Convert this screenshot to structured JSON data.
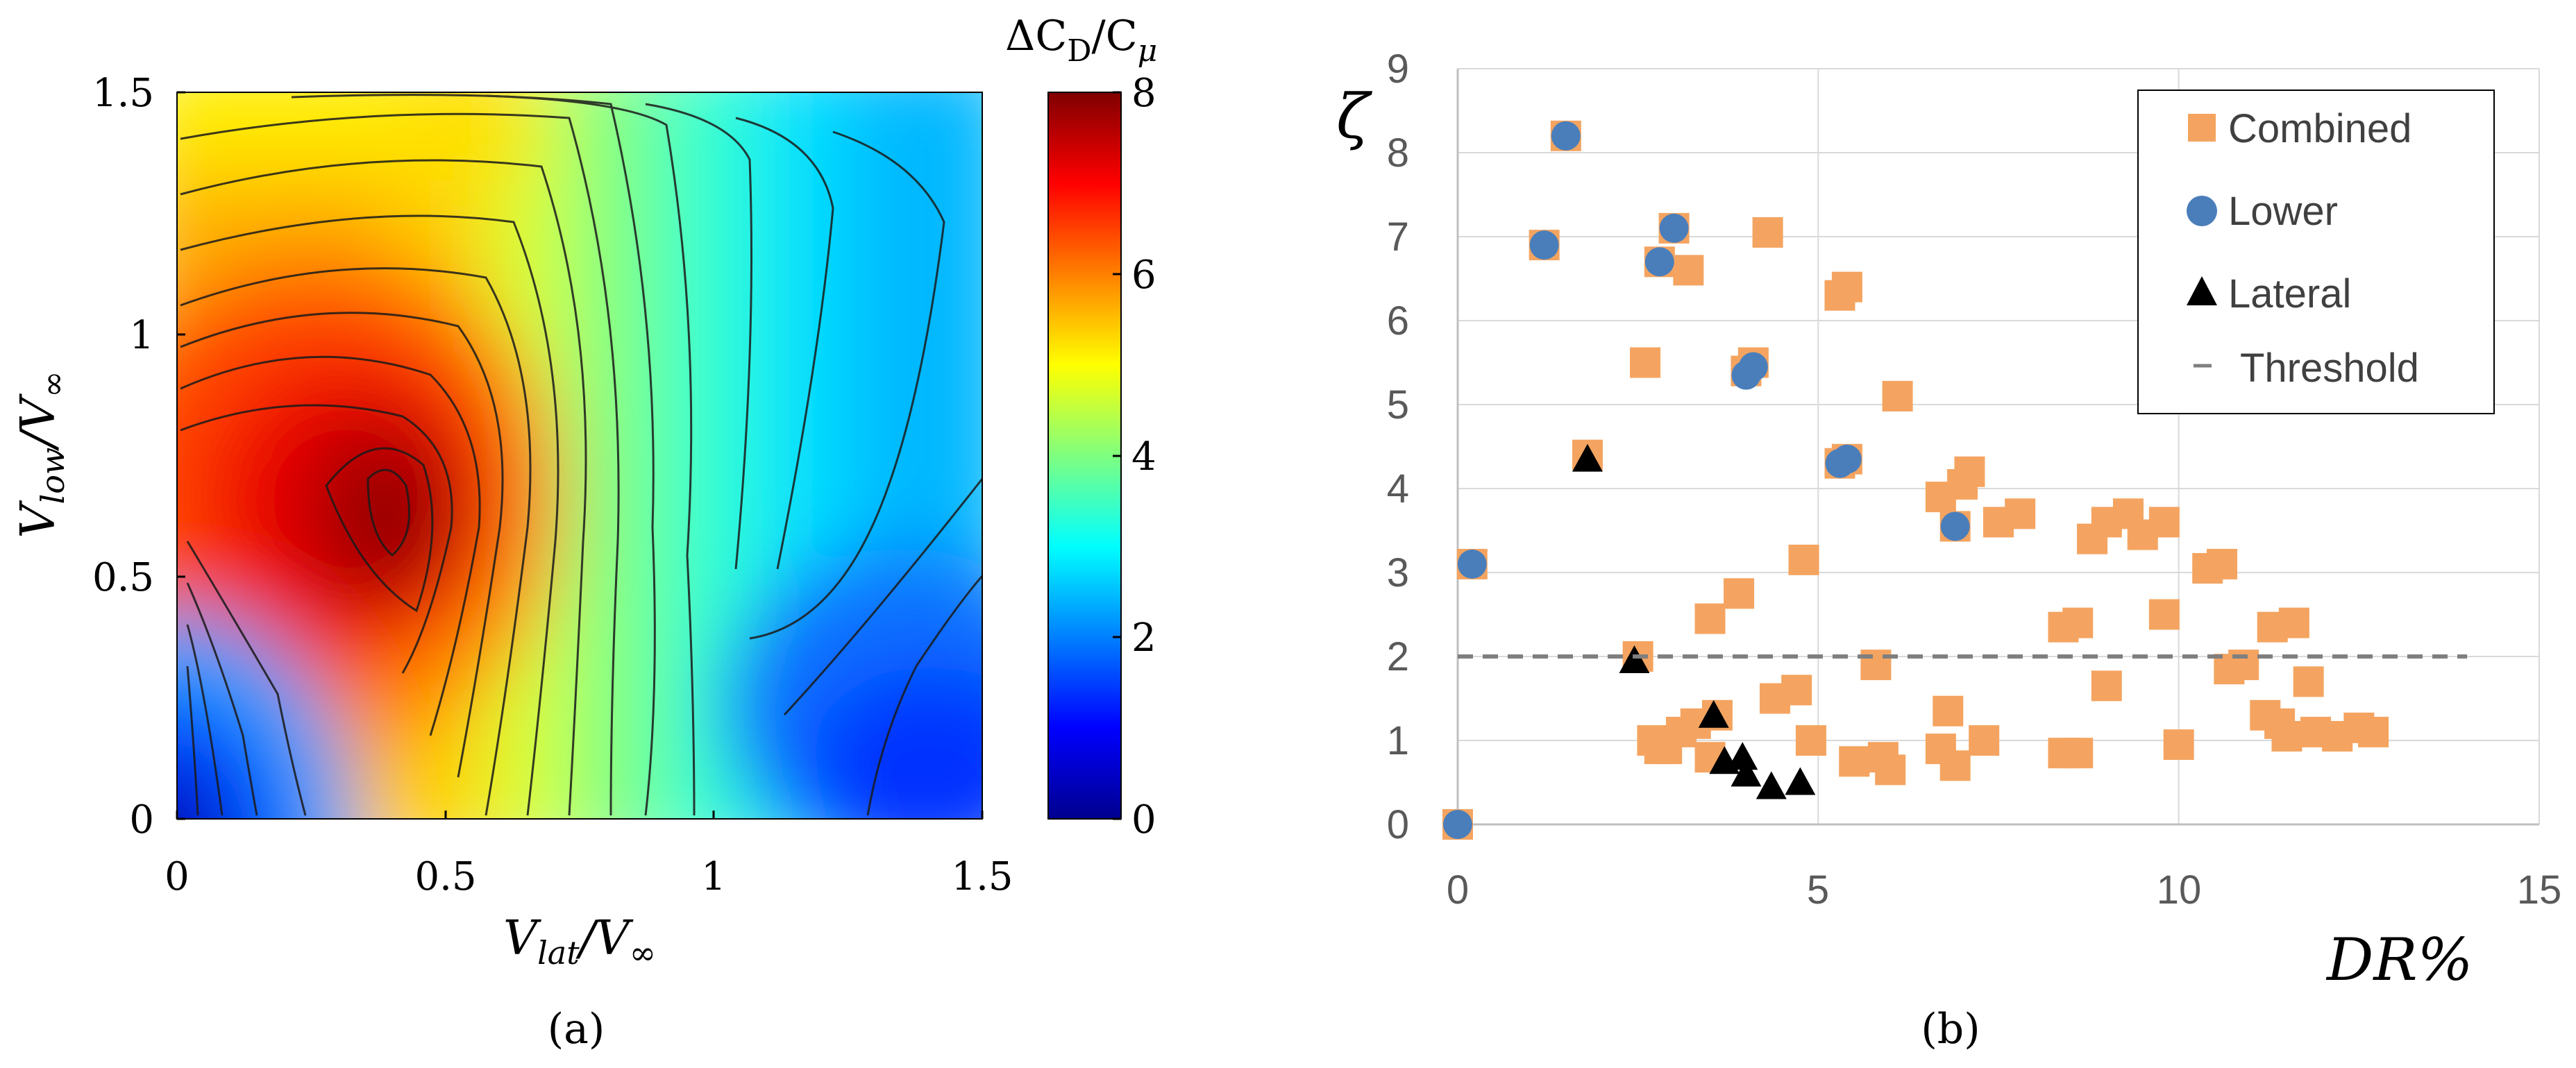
{
  "chart_data": [
    {
      "panel_label": "(a)",
      "type": "heatmap",
      "subtype": "filled-contour",
      "xlabel_main": "V",
      "xlabel_sub": "lat",
      "xlabel_den_main": "V",
      "xlabel_den_sub": "∞",
      "ylabel_main": "V",
      "ylabel_sub": "low",
      "ylabel_den_main": "V",
      "ylabel_den_sub": "∞",
      "xlim": [
        0,
        1.5
      ],
      "ylim": [
        0,
        1.5
      ],
      "xticks": [
        "0",
        "0.5",
        "1",
        "1.5"
      ],
      "yticks": [
        "0",
        "0.5",
        "1",
        "1.5"
      ],
      "colorbar_title": "ΔC",
      "colorbar_title_sub": "D",
      "colorbar_title_den": "/C",
      "colorbar_title_den_sub": "μ",
      "colorbar_range": [
        0,
        8
      ],
      "colorbar_ticks": [
        "0",
        "2",
        "4",
        "6",
        "8"
      ],
      "colormap": "jet",
      "contour_levels": 20,
      "peak": {
        "x": 0.4,
        "y": 0.6,
        "value": 8
      },
      "colors": {
        "low": "#00008f",
        "high": "#800000",
        "line": "#1a1a1a"
      }
    },
    {
      "panel_label": "(b)",
      "type": "scatter",
      "ylabel": "ζ",
      "xlabel": "DR%",
      "xlim": [
        0,
        15
      ],
      "ylim": [
        0,
        9
      ],
      "xticks": [
        "0",
        "5",
        "10",
        "15"
      ],
      "yticks": [
        "0",
        "1",
        "2",
        "3",
        "4",
        "5",
        "6",
        "7",
        "8",
        "9"
      ],
      "grid": true,
      "legend_position": "top-right",
      "series": [
        {
          "name": "Combined",
          "marker": "square",
          "color": "#f4a460",
          "points": [
            [
              0,
              0
            ],
            [
              0.2,
              3.1
            ],
            [
              1.2,
              6.9
            ],
            [
              1.5,
              8.2
            ],
            [
              1.8,
              4.4
            ],
            [
              2.5,
              2.0
            ],
            [
              2.6,
              5.5
            ],
            [
              2.7,
              1.0
            ],
            [
              2.8,
              6.7
            ],
            [
              2.8,
              0.9
            ],
            [
              2.9,
              0.9
            ],
            [
              3.0,
              7.1
            ],
            [
              3.1,
              1.1
            ],
            [
              3.2,
              6.6
            ],
            [
              3.3,
              1.2
            ],
            [
              3.5,
              2.45
            ],
            [
              3.5,
              0.8
            ],
            [
              3.6,
              1.3
            ],
            [
              3.9,
              2.75
            ],
            [
              4.0,
              5.4
            ],
            [
              4.1,
              5.5
            ],
            [
              4.3,
              7.05
            ],
            [
              4.4,
              1.5
            ],
            [
              4.7,
              1.6
            ],
            [
              4.8,
              3.15
            ],
            [
              4.9,
              1.0
            ],
            [
              5.3,
              6.3
            ],
            [
              5.3,
              4.3
            ],
            [
              5.4,
              6.4
            ],
            [
              5.4,
              4.35
            ],
            [
              5.5,
              0.75
            ],
            [
              5.8,
              1.9
            ],
            [
              5.9,
              0.8
            ],
            [
              6.0,
              0.65
            ],
            [
              6.1,
              5.1
            ],
            [
              6.7,
              0.9
            ],
            [
              6.7,
              3.9
            ],
            [
              6.8,
              1.35
            ],
            [
              6.9,
              0.7
            ],
            [
              6.9,
              3.55
            ],
            [
              7.0,
              4.05
            ],
            [
              7.1,
              4.2
            ],
            [
              7.3,
              1.0
            ],
            [
              7.5,
              3.6
            ],
            [
              7.8,
              3.7
            ],
            [
              8.4,
              2.35
            ],
            [
              8.4,
              0.85
            ],
            [
              8.6,
              2.4
            ],
            [
              8.6,
              0.85
            ],
            [
              8.8,
              3.4
            ],
            [
              9.0,
              3.6
            ],
            [
              9.0,
              1.65
            ],
            [
              9.3,
              3.7
            ],
            [
              9.5,
              3.45
            ],
            [
              9.8,
              3.6
            ],
            [
              9.8,
              2.5
            ],
            [
              10.0,
              0.95
            ],
            [
              10.4,
              3.05
            ],
            [
              10.6,
              3.1
            ],
            [
              10.7,
              1.85
            ],
            [
              10.9,
              1.9
            ],
            [
              11.2,
              1.3
            ],
            [
              11.3,
              2.35
            ],
            [
              11.4,
              1.2
            ],
            [
              11.6,
              2.4
            ],
            [
              11.5,
              1.05
            ],
            [
              11.8,
              1.7
            ],
            [
              11.9,
              1.1
            ],
            [
              12.2,
              1.05
            ],
            [
              12.5,
              1.15
            ],
            [
              12.7,
              1.1
            ]
          ]
        },
        {
          "name": "Lower",
          "marker": "circle",
          "color": "#4a7ebb",
          "points": [
            [
              0,
              0
            ],
            [
              0.2,
              3.1
            ],
            [
              1.2,
              6.9
            ],
            [
              1.5,
              8.2
            ],
            [
              2.8,
              6.7
            ],
            [
              3.0,
              7.1
            ],
            [
              4.0,
              5.35
            ],
            [
              4.1,
              5.45
            ],
            [
              5.3,
              4.3
            ],
            [
              5.4,
              4.35
            ],
            [
              6.9,
              3.55
            ]
          ]
        },
        {
          "name": "Lateral",
          "marker": "triangle",
          "color": "#000000",
          "points": [
            [
              1.8,
              4.35
            ],
            [
              2.45,
              1.95
            ],
            [
              3.55,
              1.3
            ],
            [
              3.7,
              0.75
            ],
            [
              3.95,
              0.8
            ],
            [
              4.0,
              0.6
            ],
            [
              4.35,
              0.45
            ],
            [
              4.75,
              0.5
            ]
          ]
        },
        {
          "name": "Threshold",
          "marker": "dashed-line",
          "color": "#7f7f7f",
          "points": [
            [
              0,
              2
            ],
            [
              14,
              2
            ]
          ]
        }
      ]
    }
  ]
}
